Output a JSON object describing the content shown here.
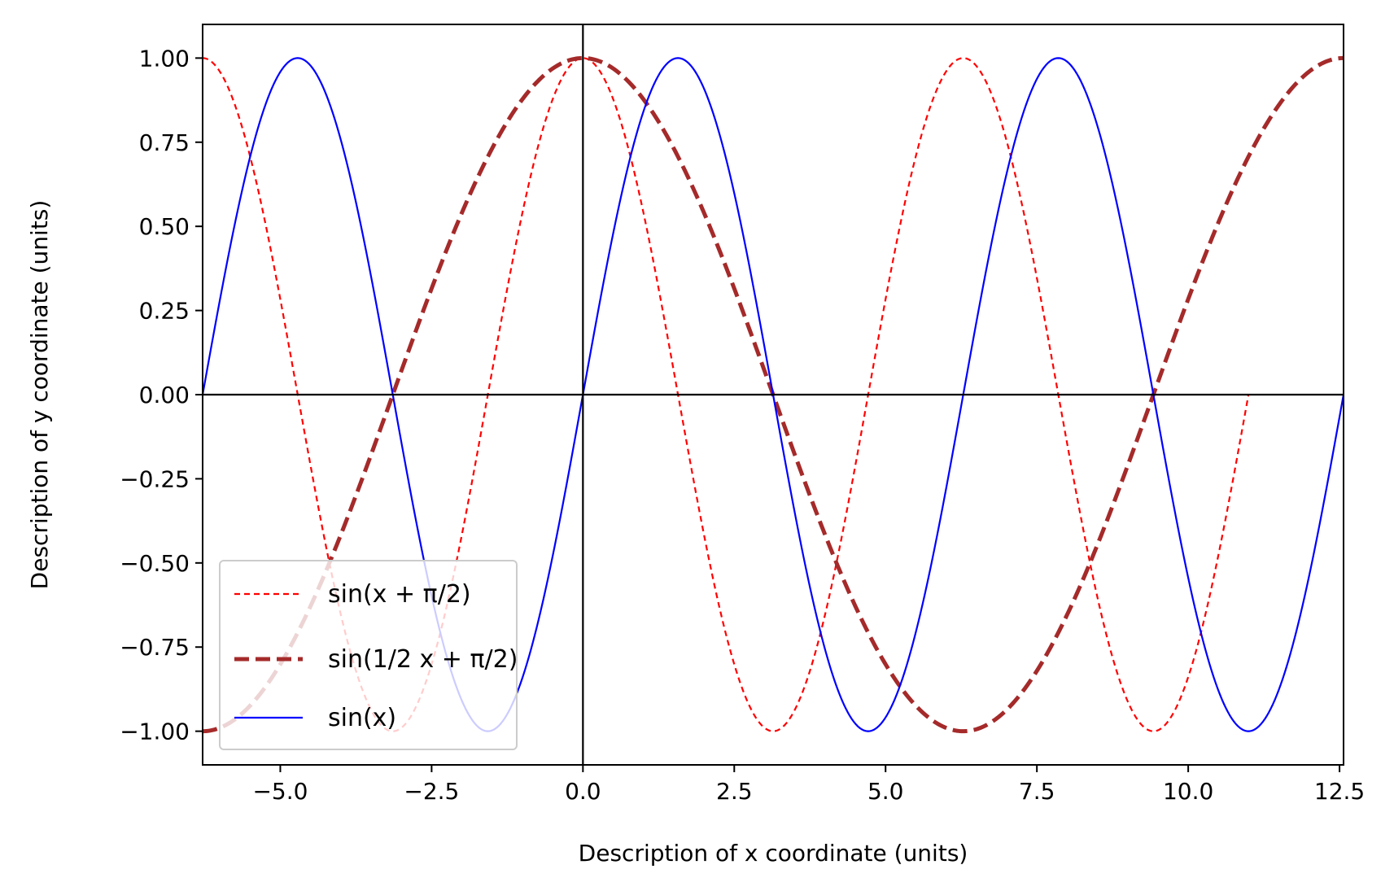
{
  "chart_data": {
    "type": "line",
    "xlabel": "Description of x coordinate (units)",
    "ylabel": "Description of y coordinate (units)",
    "xlim": [
      -6.2832,
      12.5664
    ],
    "ylim": [
      -1.1,
      1.1
    ],
    "grid": false,
    "reference_lines": {
      "x": 0,
      "y": 0
    },
    "x_ticks": [
      -5.0,
      -2.5,
      0.0,
      2.5,
      5.0,
      7.5,
      10.0,
      12.5
    ],
    "x_tick_labels": [
      "−5.0",
      "−2.5",
      "0.0",
      "2.5",
      "5.0",
      "7.5",
      "10.0",
      "12.5"
    ],
    "y_ticks": [
      1.0,
      0.75,
      0.5,
      0.25,
      0.0,
      -0.25,
      -0.5,
      -0.75,
      -1.0
    ],
    "y_tick_labels": [
      "1.00",
      "0.75",
      "0.50",
      "0.25",
      "0.00",
      "−0.25",
      "−0.50",
      "−0.75",
      "−1.00"
    ],
    "legend_position": "lower-left",
    "series": [
      {
        "name": "sin(x + π/2)",
        "function": "sin(x + pi/2)",
        "x_range": [
          -6.2832,
          10.9956
        ],
        "color": "#ff0000",
        "style": "dashed-thin"
      },
      {
        "name": "sin(1/2 x + π/2)",
        "function": "sin(0.5*x + pi/2)",
        "x_range": [
          -6.2832,
          12.5664
        ],
        "color": "#a52a2a",
        "style": "dashed-thick"
      },
      {
        "name": "sin(x)",
        "function": "sin(x)",
        "x_range": [
          -6.2832,
          12.5664
        ],
        "color": "#0000ff",
        "style": "solid"
      }
    ]
  }
}
